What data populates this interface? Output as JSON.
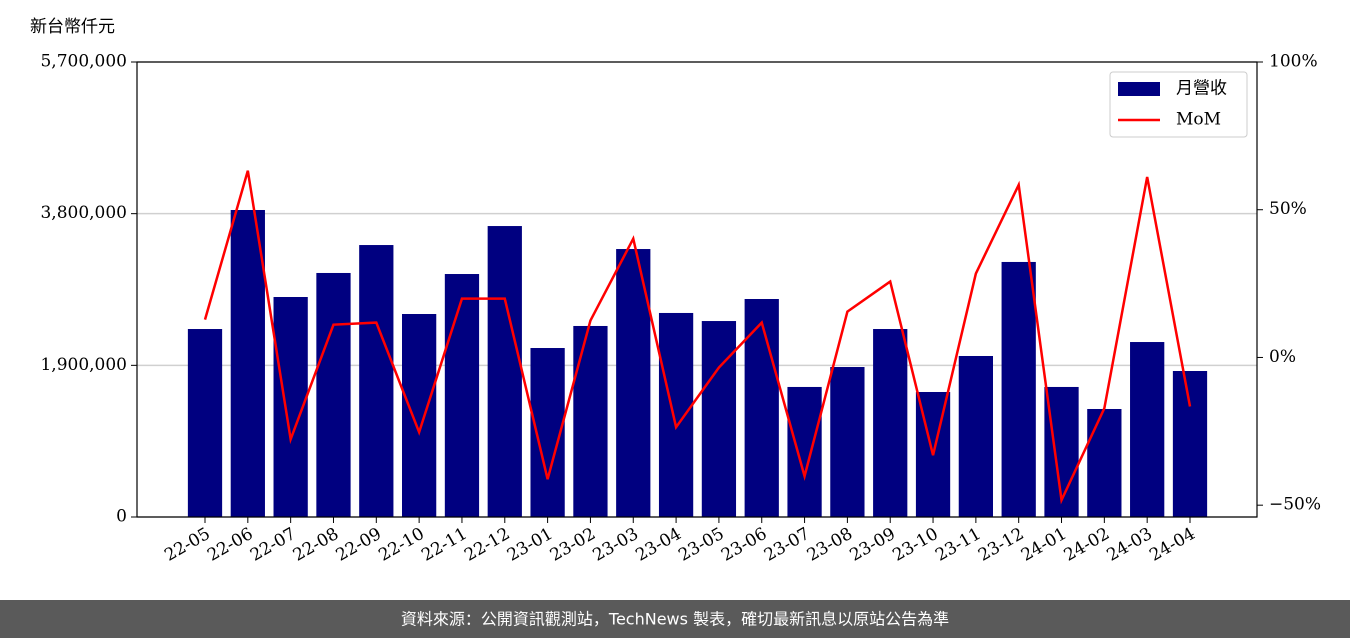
{
  "chart_data": {
    "type": "bar_line",
    "y_unit_label": "新台幣仟元",
    "categories": [
      "22-05",
      "22-06",
      "22-07",
      "22-08",
      "22-09",
      "22-10",
      "22-11",
      "22-12",
      "23-01",
      "23-02",
      "23-03",
      "23-04",
      "23-05",
      "23-06",
      "23-07",
      "23-08",
      "23-09",
      "23-10",
      "23-11",
      "23-12",
      "24-01",
      "24-02",
      "24-03",
      "24-04"
    ],
    "series": [
      {
        "name": "月營收",
        "color": "#000080",
        "type": "bar",
        "values": [
          2355000,
          3846000,
          2756000,
          3057000,
          3407000,
          2543000,
          3044000,
          3645000,
          2117000,
          2393000,
          3357000,
          2556000,
          2455000,
          2731000,
          1629000,
          1879000,
          2355000,
          1566000,
          2017000,
          3195000,
          1629000,
          1353000,
          2192000,
          1829000
        ]
      },
      {
        "name": "MoM",
        "color": "#ff0000",
        "type": "line",
        "axis": "y2",
        "values": [
          12.8,
          63.2,
          -27.7,
          11.1,
          11.8,
          -25.3,
          19.9,
          19.9,
          -41.2,
          12.5,
          40.2,
          -23.6,
          -3.4,
          11.8,
          -40.2,
          15.5,
          25.7,
          -33.1,
          28.4,
          58.4,
          -48.3,
          -17.2,
          61.1,
          -16.6
        ]
      }
    ],
    "ylim": [
      0,
      5700000
    ],
    "yticks": [
      0,
      {
        "value": 1900000,
        "label": "1,900,000"
      },
      {
        "value": 3800000,
        "label": "3,800,000"
      },
      {
        "value": 5700000,
        "label": "5,700,000"
      }
    ],
    "y2lim": [
      -54,
      100
    ],
    "y2ticks": [
      {
        "value": -50,
        "label": "−50%"
      },
      {
        "value": 0,
        "label": "0%"
      },
      {
        "value": 50,
        "label": "50%"
      },
      {
        "value": 100,
        "label": "100%"
      }
    ],
    "grid": true,
    "legend": "upper right",
    "footer": "資料來源：公開資訊觀測站，TechNews 製表，確切最新訊息以原站公告為準"
  }
}
